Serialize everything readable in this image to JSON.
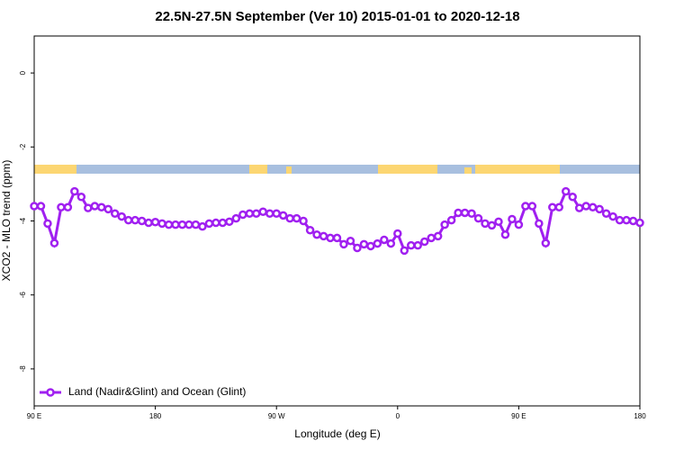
{
  "chart_data": {
    "type": "line",
    "title": "22.5N-27.5N September (Ver 10)   2015-01-01 to 2020-12-18",
    "xlabel": "Longitude (deg E)",
    "ylabel": "XCO2 - MLO trend (ppm)",
    "xlim": [
      90,
      540
    ],
    "ylim": [
      -9,
      1
    ],
    "xticks": [
      {
        "value": 90,
        "label": "90 E"
      },
      180,
      {
        "value": 270,
        "label": "90 W"
      },
      {
        "value": 360,
        "label": "0"
      },
      {
        "value": 450,
        "label": "90 E"
      },
      {
        "value": 540,
        "label": "180"
      }
    ],
    "yticks": [
      0,
      -2,
      -4,
      -6,
      -8
    ],
    "legend": "bottom-left",
    "x": [
      90,
      95,
      100,
      105,
      110,
      115,
      120,
      125,
      130,
      135,
      140,
      145,
      150,
      155,
      160,
      165,
      170,
      175,
      180,
      185,
      190,
      195,
      200,
      205,
      210,
      215,
      220,
      225,
      230,
      235,
      240,
      245,
      250,
      255,
      260,
      265,
      270,
      275,
      280,
      285,
      290,
      295,
      300,
      305,
      310,
      315,
      320,
      325,
      330,
      335,
      340,
      345,
      350,
      355,
      360,
      365,
      370,
      375,
      380,
      385,
      390,
      395,
      400,
      405,
      410,
      415,
      420,
      425,
      430,
      435,
      440,
      445,
      450,
      455,
      460,
      465,
      470,
      475,
      480,
      485,
      490,
      495,
      500,
      505,
      510,
      515,
      520,
      525,
      530,
      535,
      540
    ],
    "series": [
      {
        "name": "Land (Nadir&Glint) and Ocean (Glint)",
        "color": "#a020f0",
        "values": [
          -3.6,
          -3.6,
          -4.07,
          -4.6,
          -3.63,
          -3.63,
          -3.2,
          -3.35,
          -3.65,
          -3.6,
          -3.63,
          -3.68,
          -3.8,
          -3.88,
          -3.98,
          -3.98,
          -4.0,
          -4.05,
          -4.03,
          -4.07,
          -4.1,
          -4.1,
          -4.1,
          -4.1,
          -4.1,
          -4.15,
          -4.07,
          -4.05,
          -4.05,
          -4.02,
          -3.93,
          -3.83,
          -3.8,
          -3.8,
          -3.75,
          -3.8,
          -3.8,
          -3.85,
          -3.93,
          -3.93,
          -4.0,
          -4.25,
          -4.37,
          -4.41,
          -4.46,
          -4.46,
          -4.63,
          -4.54,
          -4.73,
          -4.63,
          -4.68,
          -4.61,
          -4.51,
          -4.61,
          -4.34,
          -4.8,
          -4.66,
          -4.66,
          -4.56,
          -4.46,
          -4.41,
          -4.1,
          -3.98,
          -3.78,
          -3.78,
          -3.8,
          -3.93,
          -4.07,
          -4.12,
          -4.02,
          -4.37,
          -3.95,
          -4.1,
          -3.6,
          -3.6,
          -4.07,
          -4.6,
          -3.63,
          -3.63,
          -3.2,
          -3.35,
          -3.65,
          -3.6,
          -3.63,
          -3.68,
          -3.8,
          -3.88,
          -3.98,
          -3.98,
          -4.0,
          -4.05
        ]
      }
    ]
  }
}
